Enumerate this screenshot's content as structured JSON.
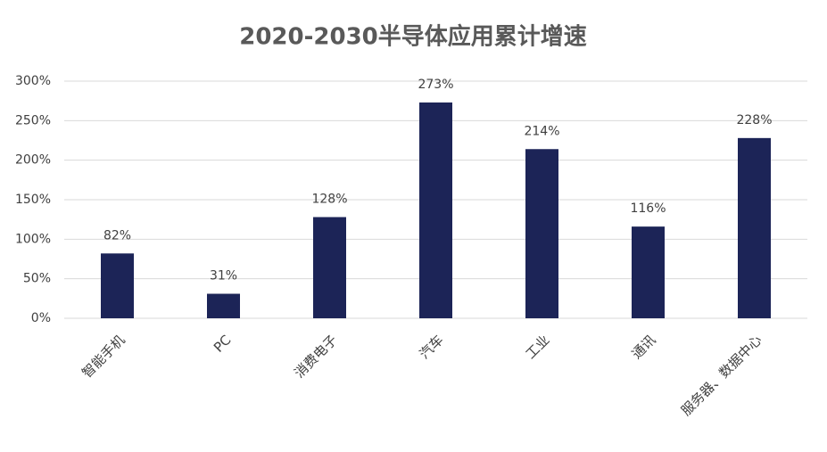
{
  "chart_data": {
    "type": "bar",
    "title": "2020-2030半导体应用累计增速",
    "categories": [
      "智能手机",
      "PC",
      "消费电子",
      "汽车",
      "工业",
      "通讯",
      "服务器、数据中心"
    ],
    "values": [
      82,
      31,
      128,
      273,
      214,
      116,
      228
    ],
    "value_labels": [
      "82%",
      "31%",
      "128%",
      "273%",
      "214%",
      "116%",
      "228%"
    ],
    "color": "#1c2457",
    "ylim": [
      0,
      300
    ],
    "yticks": [
      {
        "value": 0,
        "label": "0%"
      },
      {
        "value": 50,
        "label": "50%"
      },
      {
        "value": 100,
        "label": "100%"
      },
      {
        "value": 150,
        "label": "150%"
      },
      {
        "value": 200,
        "label": "200%"
      },
      {
        "value": 250,
        "label": "250%"
      },
      {
        "value": 300,
        "label": "300%"
      }
    ],
    "grid": true
  }
}
